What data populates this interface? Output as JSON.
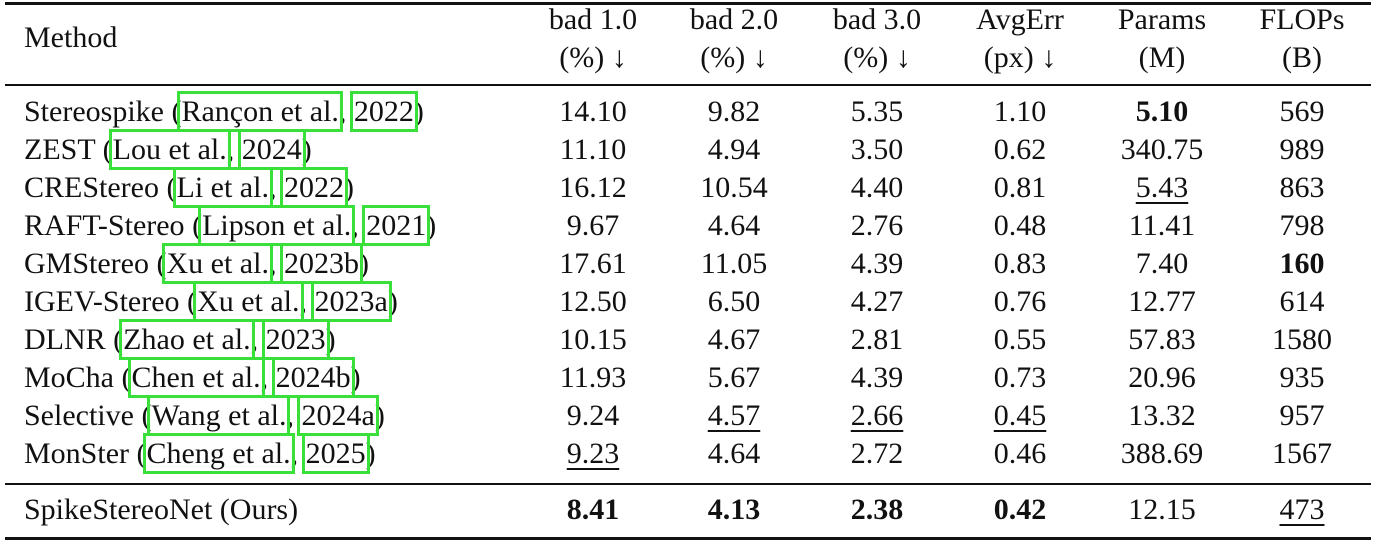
{
  "table": {
    "headers": {
      "method": "Method",
      "cols": [
        {
          "line1": "bad 1.0",
          "line2": "(%) ↓"
        },
        {
          "line1": "bad 2.0",
          "line2": "(%) ↓"
        },
        {
          "line1": "bad 3.0",
          "line2": "(%) ↓"
        },
        {
          "line1": "AvgErr",
          "line2": "(px) ↓"
        },
        {
          "line1": "Params",
          "line2": "(M)"
        },
        {
          "line1": "FLOPs",
          "line2": "(B)"
        }
      ]
    },
    "rows": [
      {
        "name": "Stereospike",
        "author": "Rançon et al.",
        "year": "2022",
        "vals": [
          "14.10",
          "9.82",
          "5.35",
          "1.10",
          "5.10",
          "569"
        ]
      },
      {
        "name": "ZEST",
        "author": "Lou et al.",
        "year": "2024",
        "vals": [
          "11.10",
          "4.94",
          "3.50",
          "0.62",
          "340.75",
          "989"
        ]
      },
      {
        "name": "CREStereo",
        "author": "Li et al.",
        "year": "2022",
        "vals": [
          "16.12",
          "10.54",
          "4.40",
          "0.81",
          "5.43",
          "863"
        ]
      },
      {
        "name": "RAFT-Stereo",
        "author": "Lipson et al.",
        "year": "2021",
        "vals": [
          "9.67",
          "4.64",
          "2.76",
          "0.48",
          "11.41",
          "798"
        ]
      },
      {
        "name": "GMStereo",
        "author": "Xu et al.",
        "year": "2023b",
        "vals": [
          "17.61",
          "11.05",
          "4.39",
          "0.83",
          "7.40",
          "160"
        ]
      },
      {
        "name": "IGEV-Stereo",
        "author": "Xu et al.",
        "year": "2023a",
        "vals": [
          "12.50",
          "6.50",
          "4.27",
          "0.76",
          "12.77",
          "614"
        ]
      },
      {
        "name": "DLNR",
        "author": "Zhao et al.",
        "year": "2023",
        "vals": [
          "10.15",
          "4.67",
          "2.81",
          "0.55",
          "57.83",
          "1580"
        ]
      },
      {
        "name": "MoCha",
        "author": "Chen et al.",
        "year": "2024b",
        "vals": [
          "11.93",
          "5.67",
          "4.39",
          "0.73",
          "20.96",
          "935"
        ]
      },
      {
        "name": "Selective",
        "author": "Wang et al.",
        "year": "2024a",
        "vals": [
          "9.24",
          "4.57",
          "2.66",
          "0.45",
          "13.32",
          "957"
        ]
      },
      {
        "name": "MonSter",
        "author": "Cheng et al.",
        "year": "2025",
        "vals": [
          "9.23",
          "4.64",
          "2.72",
          "0.46",
          "388.69",
          "1567"
        ]
      }
    ],
    "ours": {
      "name": "SpikeStereoNet (Ours)",
      "vals": [
        "8.41",
        "4.13",
        "2.38",
        "0.42",
        "12.15",
        "473"
      ]
    }
  },
  "colors": {
    "citation_box": "#39e03a",
    "text": "#111111"
  }
}
